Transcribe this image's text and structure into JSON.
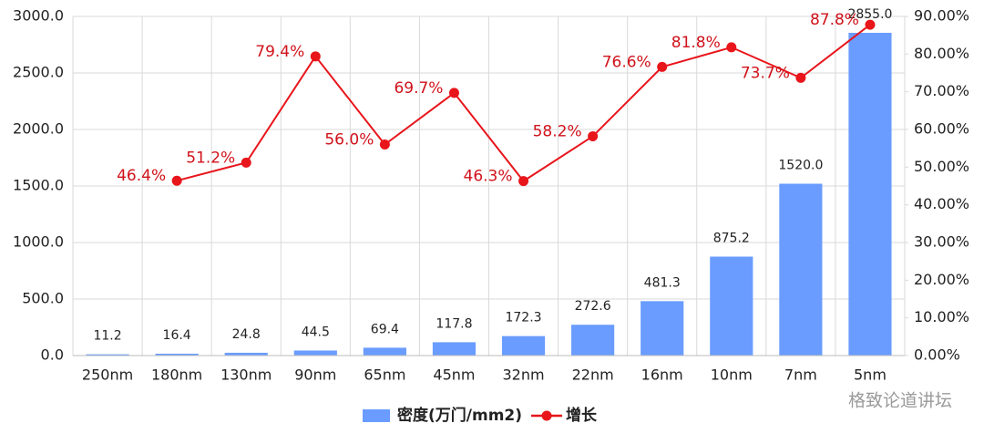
{
  "chart_data": {
    "type": "bar-line",
    "categories": [
      "250nm",
      "180nm",
      "130nm",
      "90nm",
      "65nm",
      "45nm",
      "32nm",
      "22nm",
      "16nm",
      "10nm",
      "7nm",
      "5nm"
    ],
    "series": [
      {
        "name": "密度(万门/mm2)",
        "type": "bar",
        "color": "#6a9cff",
        "values": [
          11.2,
          16.4,
          24.8,
          44.5,
          69.4,
          117.8,
          172.3,
          272.6,
          481.3,
          875.2,
          1520.0,
          2855.0
        ],
        "value_labels": [
          "11.2",
          "16.4",
          "24.8",
          "44.5",
          "69.4",
          "117.8",
          "172.3",
          "272.6",
          "481.3",
          "875.2",
          "1520.0",
          "2855.0"
        ]
      },
      {
        "name": "增长",
        "type": "line",
        "axis": "y2",
        "color": "#e8151b",
        "values": [
          null,
          46.4,
          51.2,
          79.4,
          56.0,
          69.7,
          46.3,
          58.2,
          76.6,
          81.8,
          73.7,
          87.8
        ],
        "value_labels": [
          null,
          "46.4%",
          "51.2%",
          "79.4%",
          "56.0%",
          "69.7%",
          "46.3%",
          "58.2%",
          "76.6%",
          "81.8%",
          "73.7%",
          "87.8%"
        ]
      }
    ],
    "ylim": [
      0,
      3000
    ],
    "yticks": [
      {
        "value": 0,
        "label": "0.0"
      },
      {
        "value": 500,
        "label": "500.0"
      },
      {
        "value": 1000,
        "label": "1000.0"
      },
      {
        "value": 1500,
        "label": "1500.0"
      },
      {
        "value": 2000,
        "label": "2000.0"
      },
      {
        "value": 2500,
        "label": "2500.0"
      },
      {
        "value": 3000,
        "label": "3000.0"
      }
    ],
    "y2lim": [
      0,
      90
    ],
    "y2ticks": [
      {
        "value": 0,
        "label": "0.00%"
      },
      {
        "value": 10,
        "label": "10.00%"
      },
      {
        "value": 20,
        "label": "20.00%"
      },
      {
        "value": 30,
        "label": "30.00%"
      },
      {
        "value": 40,
        "label": "40.00%"
      },
      {
        "value": 50,
        "label": "50.00%"
      },
      {
        "value": 60,
        "label": "60.00%"
      },
      {
        "value": 70,
        "label": "70.00%"
      },
      {
        "value": 80,
        "label": "80.00%"
      },
      {
        "value": 90,
        "label": "90.00%"
      }
    ],
    "grid": true,
    "legend": "bottom",
    "watermark": "格致论道讲坛"
  }
}
